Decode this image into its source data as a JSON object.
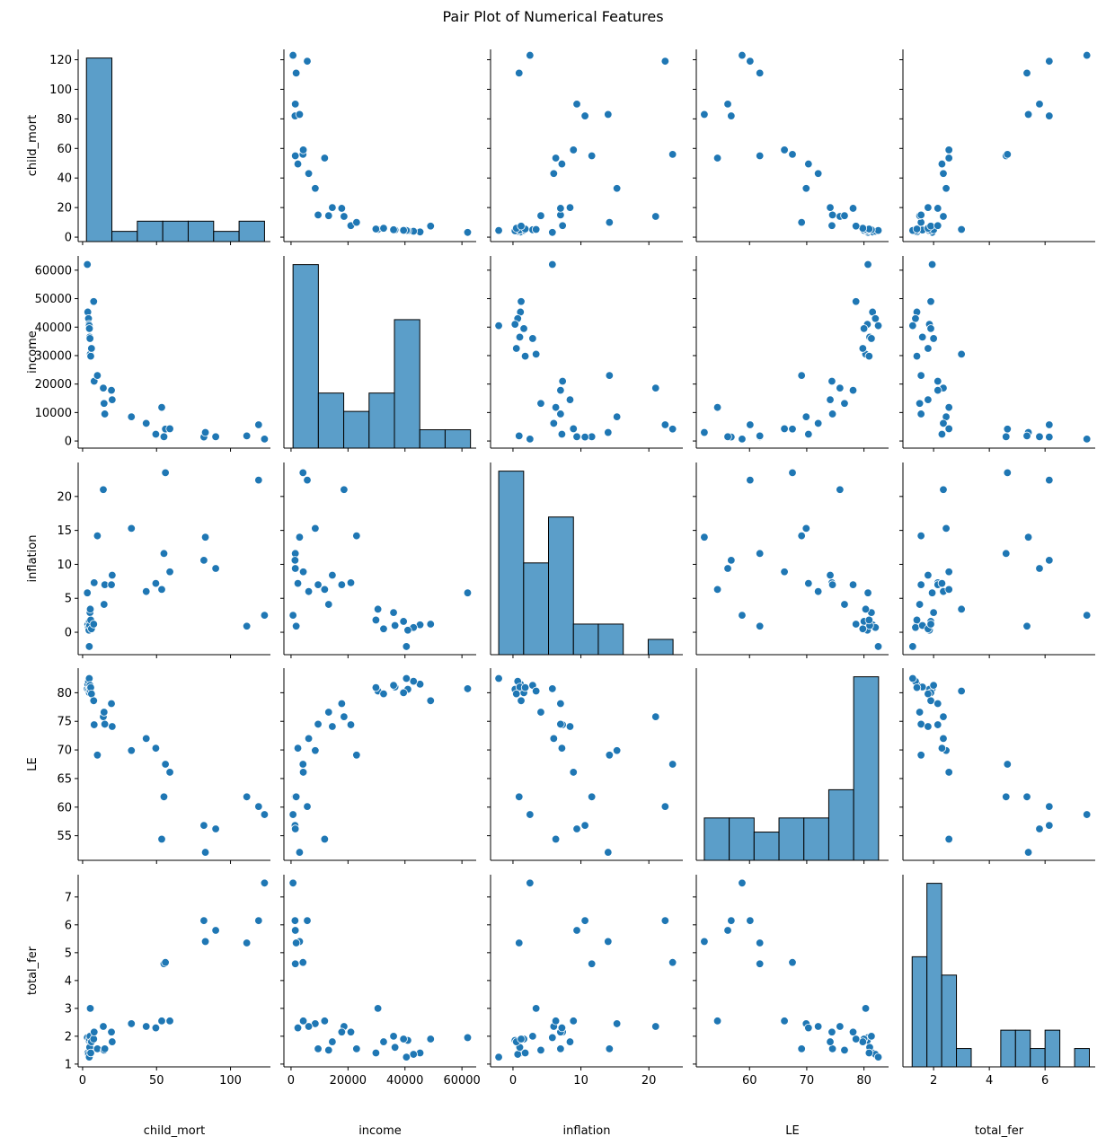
{
  "chart_data": {
    "type": "scatter",
    "title": "Pair Plot of Numerical Features",
    "variables": [
      "child_mort",
      "income",
      "inflation",
      "LE",
      "total_fer"
    ],
    "colors": {
      "point": "#1f77b4",
      "bar": "#5b9ec9",
      "edge": "#000000"
    },
    "axes": {
      "child_mort": {
        "range": [
          -3,
          127
        ],
        "ticks": [
          0,
          20,
          40,
          60,
          80,
          100,
          120
        ],
        "ticks_x": [
          0,
          50,
          100
        ]
      },
      "income": {
        "range": [
          -2500,
          65000
        ],
        "ticks": [
          0,
          10000,
          20000,
          30000,
          40000,
          50000,
          60000
        ],
        "ticks_x": [
          0,
          20000,
          40000,
          60000
        ]
      },
      "inflation": {
        "range": [
          -3.3,
          25
        ],
        "ticks": [
          0,
          5,
          10,
          15,
          20
        ],
        "ticks_x": [
          0,
          10,
          20
        ]
      },
      "LE": {
        "range": [
          50.7,
          84.3
        ],
        "ticks": [
          55,
          60,
          65,
          70,
          75,
          80
        ],
        "ticks_x": [
          60,
          70,
          80
        ]
      },
      "total_fer": {
        "range": [
          0.9,
          7.8
        ],
        "ticks": [
          1,
          2,
          3,
          4,
          5,
          6,
          7
        ],
        "ticks_x": [
          2,
          4,
          6
        ]
      }
    },
    "records": [
      {
        "child_mort": 3.2,
        "income": 62000,
        "inflation": 5.8,
        "LE": 80.7,
        "total_fer": 1.95
      },
      {
        "child_mort": 3.5,
        "income": 45300,
        "inflation": 1.1,
        "LE": 81.5,
        "total_fer": 1.4
      },
      {
        "child_mort": 4.0,
        "income": 43000,
        "inflation": 0.7,
        "LE": 82.0,
        "total_fer": 1.35
      },
      {
        "child_mort": 4.3,
        "income": 41000,
        "inflation": 0.3,
        "LE": 80.6,
        "total_fer": 1.85
      },
      {
        "child_mort": 4.5,
        "income": 40500,
        "inflation": -2.1,
        "LE": 82.5,
        "total_fer": 1.25
      },
      {
        "child_mort": 4.6,
        "income": 39500,
        "inflation": 1.6,
        "LE": 80.0,
        "total_fer": 1.9
      },
      {
        "child_mort": 4.8,
        "income": 36500,
        "inflation": 1.0,
        "LE": 81.0,
        "total_fer": 1.6
      },
      {
        "child_mort": 5.0,
        "income": 36000,
        "inflation": 2.9,
        "LE": 81.3,
        "total_fer": 2.0
      },
      {
        "child_mort": 5.2,
        "income": 30500,
        "inflation": 3.4,
        "LE": 80.3,
        "total_fer": 3.0
      },
      {
        "child_mort": 5.5,
        "income": 29800,
        "inflation": 1.8,
        "LE": 80.9,
        "total_fer": 1.4
      },
      {
        "child_mort": 6.0,
        "income": 32500,
        "inflation": 0.5,
        "LE": 79.8,
        "total_fer": 1.8
      },
      {
        "child_mort": 7.5,
        "income": 49000,
        "inflation": 1.2,
        "LE": 78.6,
        "total_fer": 1.9
      },
      {
        "child_mort": 7.8,
        "income": 21000,
        "inflation": 7.3,
        "LE": 74.4,
        "total_fer": 2.15
      },
      {
        "child_mort": 10.0,
        "income": 23000,
        "inflation": 14.2,
        "LE": 69.1,
        "total_fer": 1.55
      },
      {
        "child_mort": 14.0,
        "income": 18600,
        "inflation": 21.0,
        "LE": 75.8,
        "total_fer": 2.35
      },
      {
        "child_mort": 14.5,
        "income": 13200,
        "inflation": 4.1,
        "LE": 76.6,
        "total_fer": 1.5
      },
      {
        "child_mort": 15.0,
        "income": 9500,
        "inflation": 7.0,
        "LE": 74.5,
        "total_fer": 1.55
      },
      {
        "child_mort": 19.5,
        "income": 17800,
        "inflation": 7.0,
        "LE": 78.1,
        "total_fer": 2.15
      },
      {
        "child_mort": 20.0,
        "income": 14500,
        "inflation": 8.4,
        "LE": 74.1,
        "total_fer": 1.8
      },
      {
        "child_mort": 33.0,
        "income": 8500,
        "inflation": 15.3,
        "LE": 69.9,
        "total_fer": 2.45
      },
      {
        "child_mort": 43.0,
        "income": 6200,
        "inflation": 6.0,
        "LE": 72.0,
        "total_fer": 2.35
      },
      {
        "child_mort": 49.5,
        "income": 2400,
        "inflation": 7.2,
        "LE": 70.3,
        "total_fer": 2.3
      },
      {
        "child_mort": 53.5,
        "income": 11800,
        "inflation": 6.3,
        "LE": 54.4,
        "total_fer": 2.55
      },
      {
        "child_mort": 55.0,
        "income": 1500,
        "inflation": 11.6,
        "LE": 61.8,
        "total_fer": 4.6
      },
      {
        "child_mort": 56.0,
        "income": 4200,
        "inflation": 23.5,
        "LE": 67.5,
        "total_fer": 4.65
      },
      {
        "child_mort": 59.0,
        "income": 4300,
        "inflation": 8.9,
        "LE": 66.1,
        "total_fer": 2.55
      },
      {
        "child_mort": 82.0,
        "income": 1400,
        "inflation": 10.6,
        "LE": 56.8,
        "total_fer": 6.15
      },
      {
        "child_mort": 83.0,
        "income": 3000,
        "inflation": 14.0,
        "LE": 52.1,
        "total_fer": 5.4
      },
      {
        "child_mort": 90.0,
        "income": 1500,
        "inflation": 9.4,
        "LE": 56.2,
        "total_fer": 5.8
      },
      {
        "child_mort": 111.0,
        "income": 1800,
        "inflation": 0.9,
        "LE": 61.8,
        "total_fer": 5.35
      },
      {
        "child_mort": 119.0,
        "income": 5700,
        "inflation": 22.4,
        "LE": 60.1,
        "total_fer": 6.15
      },
      {
        "child_mort": 123.0,
        "income": 700,
        "inflation": 2.5,
        "LE": 58.7,
        "total_fer": 7.5
      }
    ],
    "histograms": {
      "child_mort": {
        "edges": [
          2.6,
          19.8,
          37.0,
          54.2,
          71.4,
          88.6,
          105.8,
          123.0
        ],
        "counts": [
          18,
          1,
          2,
          2,
          2,
          1,
          2
        ]
      },
      "income": {
        "edges": [
          700,
          9600,
          18500,
          27400,
          36300,
          45200,
          54100,
          63000
        ],
        "counts": [
          10,
          3,
          2,
          3,
          7,
          1,
          1
        ]
      },
      "inflation": {
        "edges": [
          -2.1,
          1.57,
          5.23,
          8.9,
          12.56,
          16.23,
          19.9,
          23.56
        ],
        "counts": [
          12,
          6,
          9,
          2,
          2,
          0,
          1
        ]
      },
      "LE": {
        "edges": [
          52.1,
          56.45,
          60.8,
          65.15,
          69.5,
          73.85,
          78.2,
          82.55
        ],
        "counts": [
          3,
          3,
          2,
          3,
          3,
          5,
          13
        ]
      },
      "total_fer": {
        "edges": [
          1.23,
          1.76,
          2.29,
          2.82,
          3.35,
          3.88,
          4.41,
          4.94,
          5.47,
          6.0,
          6.53,
          7.06,
          7.59
        ],
        "counts": [
          6,
          10,
          5,
          1,
          0,
          0,
          2,
          2,
          1,
          2,
          0,
          1
        ]
      }
    }
  }
}
